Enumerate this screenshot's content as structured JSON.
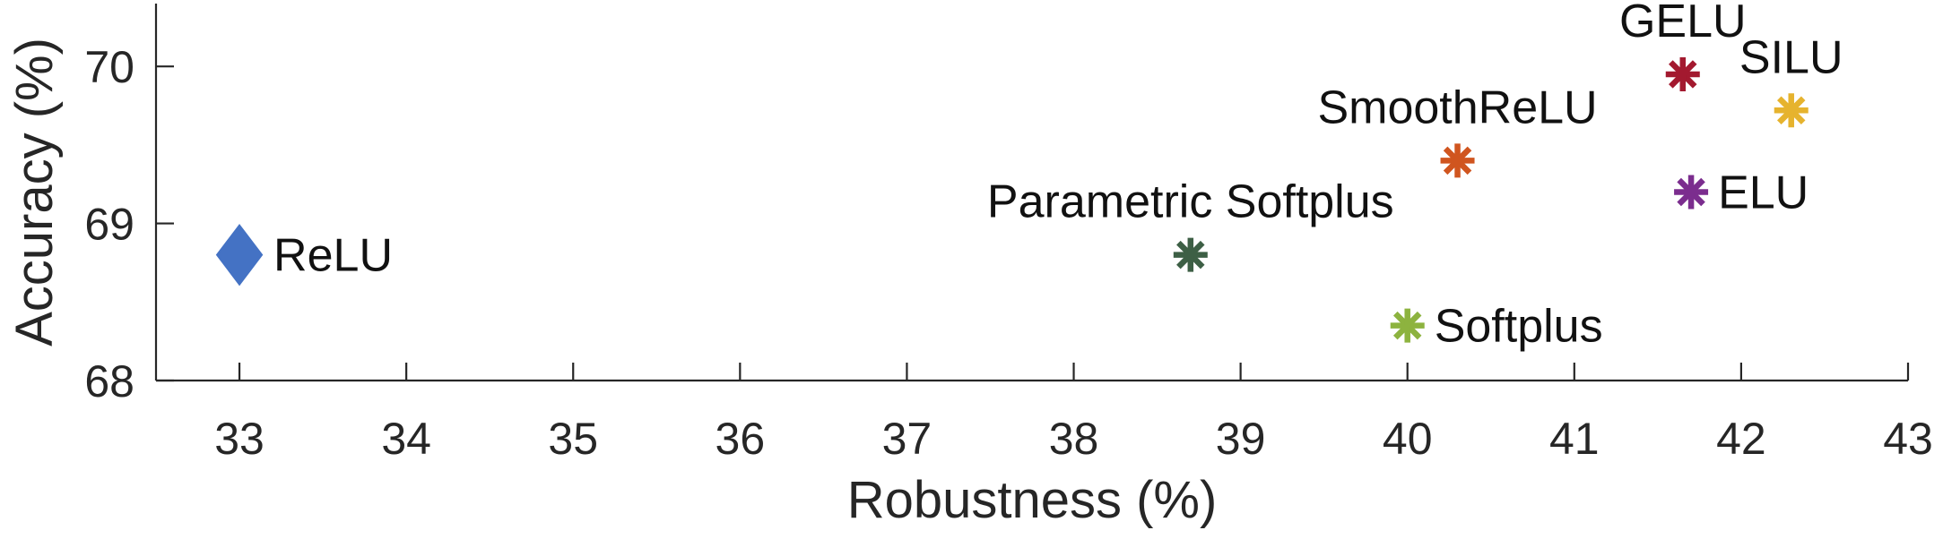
{
  "chart_data": {
    "type": "scatter",
    "title": "",
    "xlabel": "Robustness (%)",
    "ylabel": "Accuracy (%)",
    "xlim": [
      32.5,
      43
    ],
    "ylim": [
      68,
      70.4
    ],
    "xticks": [
      33,
      34,
      35,
      36,
      37,
      38,
      39,
      40,
      41,
      42,
      43
    ],
    "yticks": [
      68,
      69,
      70
    ],
    "grid": false,
    "legend": "none",
    "points": [
      {
        "name": "ReLU",
        "x": 33.0,
        "y": 68.8,
        "marker": "diamond",
        "color": "#4472c4",
        "label_pos": "right"
      },
      {
        "name": "Parametric Softplus",
        "x": 38.7,
        "y": 68.8,
        "marker": "asterisk",
        "color": "#3d5f45",
        "label_pos": "above"
      },
      {
        "name": "Softplus",
        "x": 40.0,
        "y": 68.35,
        "marker": "asterisk",
        "color": "#8db33f",
        "label_pos": "right"
      },
      {
        "name": "SmoothReLU",
        "x": 40.3,
        "y": 69.4,
        "marker": "asterisk",
        "color": "#d0551f",
        "label_pos": "above"
      },
      {
        "name": "GELU",
        "x": 41.65,
        "y": 69.95,
        "marker": "asterisk",
        "color": "#a3192f",
        "label_pos": "above"
      },
      {
        "name": "ELU",
        "x": 41.7,
        "y": 69.2,
        "marker": "asterisk",
        "color": "#7b2d8e",
        "label_pos": "right"
      },
      {
        "name": "SILU",
        "x": 42.3,
        "y": 69.72,
        "marker": "asterisk",
        "color": "#e6b32e",
        "label_pos": "above"
      }
    ]
  }
}
